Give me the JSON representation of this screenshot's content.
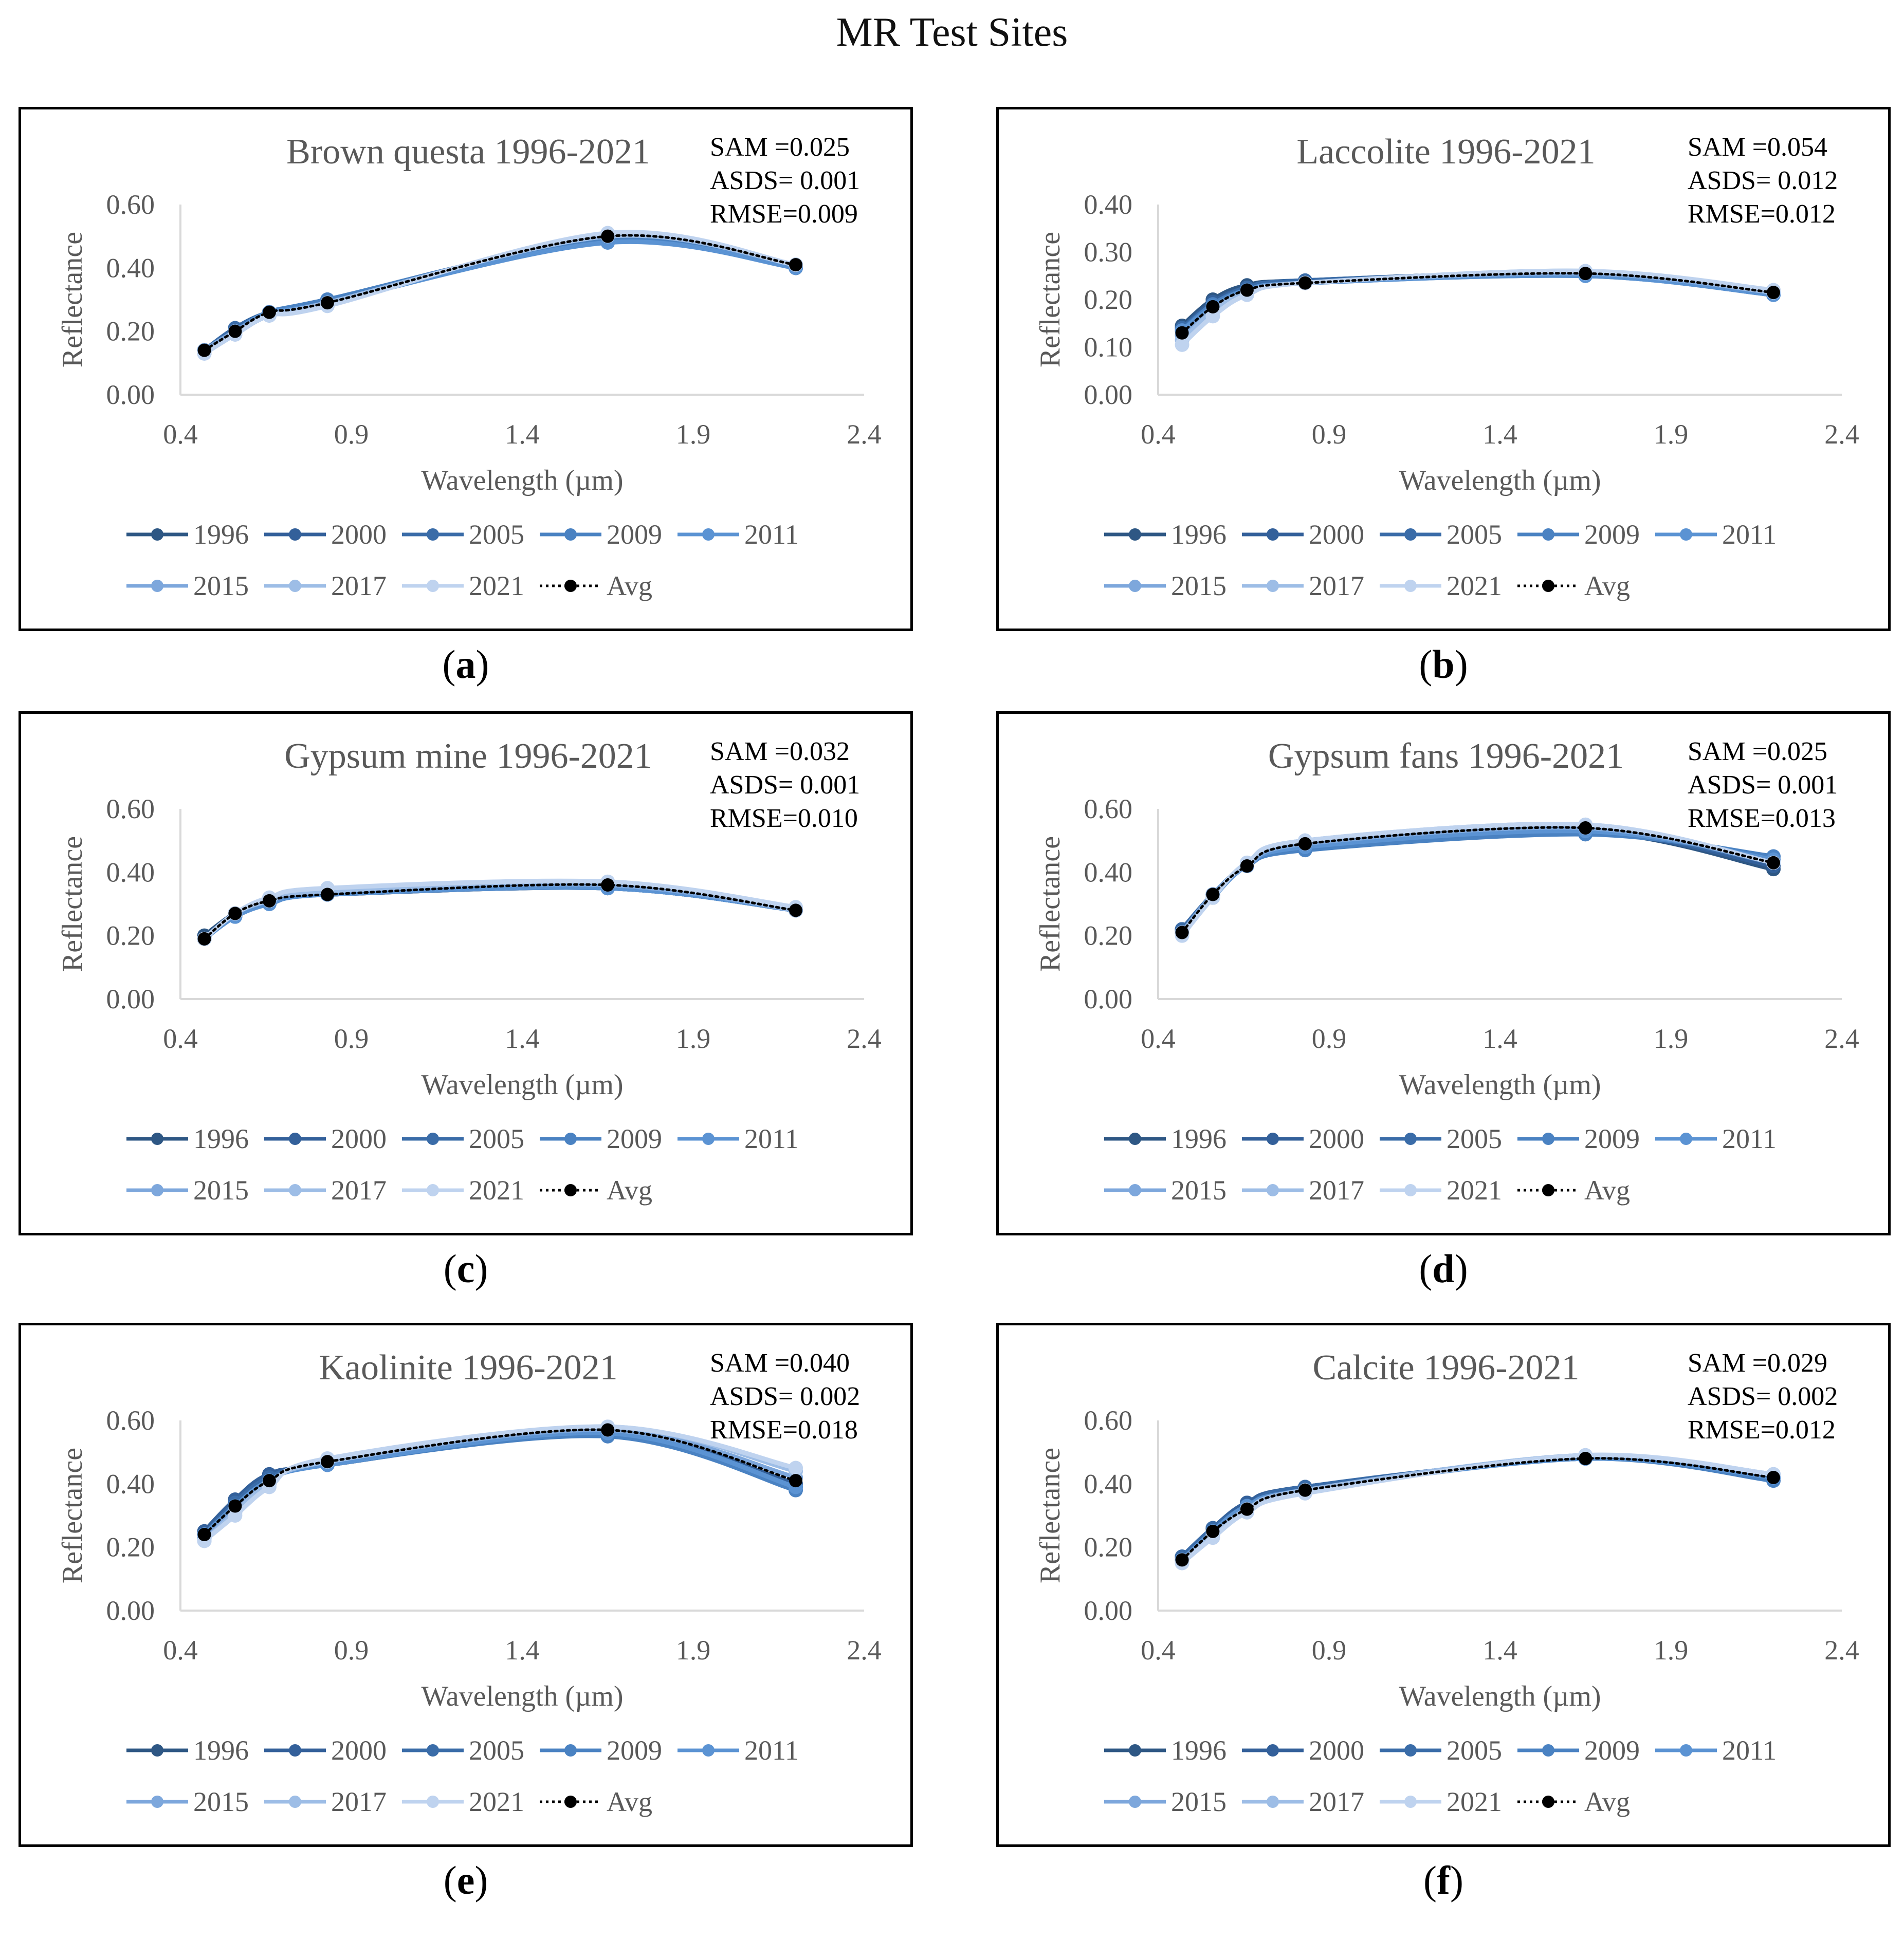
{
  "title": "MR Test Sites",
  "colors": {
    "1996": "#2e5784",
    "2000": "#33609a",
    "2005": "#3a6ca8",
    "2009": "#4a82c2",
    "2011": "#5b93d3",
    "2015": "#7da7dc",
    "2017": "#9dbde6",
    "2021": "#bfd3ef",
    "Avg": "#000000"
  },
  "chart_data": [
    {
      "type": "line",
      "id": "a",
      "caption": "a",
      "title": "Brown questa 1996-2021",
      "stats": [
        "SAM =0.025",
        "ASDS= 0.001",
        "RMSE=0.009"
      ],
      "xlabel": "Wavelength (µm)",
      "ylabel": "Reflectance",
      "xlim": [
        0.4,
        2.4
      ],
      "ylim": [
        0,
        0.6
      ],
      "xticks": [
        "0.4",
        "0.9",
        "1.4",
        "1.9",
        "2.4"
      ],
      "yticks": [
        "0.00",
        "0.20",
        "0.40",
        "0.60"
      ],
      "x": [
        0.47,
        0.56,
        0.66,
        0.83,
        1.65,
        2.2
      ],
      "series": [
        {
          "name": "1996",
          "values": [
            0.14,
            0.2,
            0.26,
            0.29,
            0.49,
            0.4
          ]
        },
        {
          "name": "2000",
          "values": [
            0.14,
            0.2,
            0.26,
            0.29,
            0.49,
            0.4
          ]
        },
        {
          "name": "2005",
          "values": [
            0.14,
            0.21,
            0.26,
            0.3,
            0.49,
            0.4
          ]
        },
        {
          "name": "2009",
          "values": [
            0.14,
            0.2,
            0.26,
            0.3,
            0.49,
            0.41
          ]
        },
        {
          "name": "2011",
          "values": [
            0.14,
            0.2,
            0.26,
            0.29,
            0.48,
            0.4
          ]
        },
        {
          "name": "2015",
          "values": [
            0.14,
            0.2,
            0.25,
            0.29,
            0.5,
            0.41
          ]
        },
        {
          "name": "2017",
          "values": [
            0.13,
            0.19,
            0.25,
            0.29,
            0.5,
            0.41
          ]
        },
        {
          "name": "2021",
          "values": [
            0.13,
            0.19,
            0.25,
            0.28,
            0.51,
            0.41
          ]
        },
        {
          "name": "Avg",
          "values": [
            0.14,
            0.2,
            0.26,
            0.29,
            0.5,
            0.41
          ]
        }
      ]
    },
    {
      "type": "line",
      "id": "b",
      "caption": "b",
      "title": "Laccolite 1996-2021",
      "stats": [
        "SAM =0.054",
        "ASDS= 0.012",
        "RMSE=0.012"
      ],
      "xlabel": "Wavelength (µm)",
      "ylabel": "Reflectance",
      "xlim": [
        0.4,
        2.4
      ],
      "ylim": [
        0,
        0.4
      ],
      "xticks": [
        "0.4",
        "0.9",
        "1.4",
        "1.9",
        "2.4"
      ],
      "yticks": [
        "0.00",
        "0.10",
        "0.20",
        "0.30",
        "0.40"
      ],
      "x": [
        0.47,
        0.56,
        0.66,
        0.83,
        1.65,
        2.2
      ],
      "series": [
        {
          "name": "1996",
          "values": [
            0.145,
            0.2,
            0.23,
            0.24,
            0.255,
            0.215
          ]
        },
        {
          "name": "2000",
          "values": [
            0.14,
            0.195,
            0.225,
            0.24,
            0.255,
            0.215
          ]
        },
        {
          "name": "2005",
          "values": [
            0.14,
            0.19,
            0.225,
            0.24,
            0.255,
            0.215
          ]
        },
        {
          "name": "2009",
          "values": [
            0.135,
            0.19,
            0.22,
            0.235,
            0.25,
            0.21
          ]
        },
        {
          "name": "2011",
          "values": [
            0.135,
            0.185,
            0.22,
            0.235,
            0.25,
            0.21
          ]
        },
        {
          "name": "2015",
          "values": [
            0.125,
            0.18,
            0.215,
            0.235,
            0.255,
            0.215
          ]
        },
        {
          "name": "2017",
          "values": [
            0.115,
            0.175,
            0.215,
            0.235,
            0.26,
            0.215
          ]
        },
        {
          "name": "2021",
          "values": [
            0.105,
            0.165,
            0.21,
            0.235,
            0.26,
            0.22
          ]
        },
        {
          "name": "Avg",
          "values": [
            0.13,
            0.185,
            0.22,
            0.235,
            0.255,
            0.215
          ]
        }
      ]
    },
    {
      "type": "line",
      "id": "c",
      "caption": "c",
      "title": "Gypsum mine 1996-2021",
      "stats": [
        "SAM =0.032",
        "ASDS= 0.001",
        "RMSE=0.010"
      ],
      "xlabel": "Wavelength (µm)",
      "ylabel": "Reflectance",
      "xlim": [
        0.4,
        2.4
      ],
      "ylim": [
        0,
        0.6
      ],
      "xticks": [
        "0.4",
        "0.9",
        "1.4",
        "1.9",
        "2.4"
      ],
      "yticks": [
        "0.00",
        "0.20",
        "0.40",
        "0.60"
      ],
      "x": [
        0.47,
        0.56,
        0.66,
        0.83,
        1.65,
        2.2
      ],
      "series": [
        {
          "name": "1996",
          "values": [
            0.2,
            0.27,
            0.31,
            0.33,
            0.35,
            0.28
          ]
        },
        {
          "name": "2000",
          "values": [
            0.19,
            0.27,
            0.31,
            0.33,
            0.35,
            0.28
          ]
        },
        {
          "name": "2005",
          "values": [
            0.19,
            0.27,
            0.31,
            0.33,
            0.35,
            0.28
          ]
        },
        {
          "name": "2009",
          "values": [
            0.19,
            0.26,
            0.3,
            0.33,
            0.35,
            0.28
          ]
        },
        {
          "name": "2011",
          "values": [
            0.19,
            0.26,
            0.3,
            0.33,
            0.35,
            0.28
          ]
        },
        {
          "name": "2015",
          "values": [
            0.19,
            0.27,
            0.31,
            0.34,
            0.36,
            0.28
          ]
        },
        {
          "name": "2017",
          "values": [
            0.19,
            0.27,
            0.31,
            0.34,
            0.37,
            0.28
          ]
        },
        {
          "name": "2021",
          "values": [
            0.19,
            0.27,
            0.32,
            0.35,
            0.37,
            0.29
          ]
        },
        {
          "name": "Avg",
          "values": [
            0.19,
            0.27,
            0.31,
            0.33,
            0.36,
            0.28
          ]
        }
      ]
    },
    {
      "type": "line",
      "id": "d",
      "caption": "d",
      "title": "Gypsum fans 1996-2021",
      "stats": [
        "SAM =0.025",
        "ASDS= 0.001",
        "RMSE=0.013"
      ],
      "xlabel": "Wavelength (µm)",
      "ylabel": "Reflectance",
      "xlim": [
        0.4,
        2.4
      ],
      "ylim": [
        0,
        0.6
      ],
      "xticks": [
        "0.4",
        "0.9",
        "1.4",
        "1.9",
        "2.4"
      ],
      "yticks": [
        "0.00",
        "0.20",
        "0.40",
        "0.60"
      ],
      "x": [
        0.47,
        0.56,
        0.66,
        0.83,
        1.65,
        2.2
      ],
      "series": [
        {
          "name": "1996",
          "values": [
            0.22,
            0.33,
            0.42,
            0.48,
            0.53,
            0.41
          ]
        },
        {
          "name": "2000",
          "values": [
            0.22,
            0.33,
            0.42,
            0.48,
            0.53,
            0.42
          ]
        },
        {
          "name": "2005",
          "values": [
            0.22,
            0.33,
            0.42,
            0.48,
            0.53,
            0.43
          ]
        },
        {
          "name": "2009",
          "values": [
            0.21,
            0.33,
            0.42,
            0.47,
            0.52,
            0.45
          ]
        },
        {
          "name": "2011",
          "values": [
            0.21,
            0.32,
            0.42,
            0.48,
            0.53,
            0.44
          ]
        },
        {
          "name": "2015",
          "values": [
            0.21,
            0.33,
            0.42,
            0.49,
            0.54,
            0.43
          ]
        },
        {
          "name": "2017",
          "values": [
            0.21,
            0.32,
            0.43,
            0.5,
            0.55,
            0.43
          ]
        },
        {
          "name": "2021",
          "values": [
            0.2,
            0.32,
            0.43,
            0.5,
            0.55,
            0.43
          ]
        },
        {
          "name": "Avg",
          "values": [
            0.21,
            0.33,
            0.42,
            0.49,
            0.54,
            0.43
          ]
        }
      ]
    },
    {
      "type": "line",
      "id": "e",
      "caption": "e",
      "title": "Kaolinite 1996-2021",
      "stats": [
        "SAM =0.040",
        "ASDS= 0.002",
        "RMSE=0.018"
      ],
      "xlabel": "Wavelength (µm)",
      "ylabel": "Reflectance",
      "xlim": [
        0.4,
        2.4
      ],
      "ylim": [
        0,
        0.6
      ],
      "xticks": [
        "0.4",
        "0.9",
        "1.4",
        "1.9",
        "2.4"
      ],
      "yticks": [
        "0.00",
        "0.20",
        "0.40",
        "0.60"
      ],
      "x": [
        0.47,
        0.56,
        0.66,
        0.83,
        1.65,
        2.2
      ],
      "series": [
        {
          "name": "1996",
          "values": [
            0.25,
            0.35,
            0.43,
            0.46,
            0.56,
            0.39
          ]
        },
        {
          "name": "2000",
          "values": [
            0.25,
            0.35,
            0.43,
            0.46,
            0.56,
            0.4
          ]
        },
        {
          "name": "2005",
          "values": [
            0.24,
            0.34,
            0.42,
            0.46,
            0.56,
            0.39
          ]
        },
        {
          "name": "2009",
          "values": [
            0.24,
            0.33,
            0.41,
            0.46,
            0.55,
            0.38
          ]
        },
        {
          "name": "2011",
          "values": [
            0.24,
            0.33,
            0.41,
            0.46,
            0.56,
            0.39
          ]
        },
        {
          "name": "2015",
          "values": [
            0.23,
            0.32,
            0.4,
            0.47,
            0.57,
            0.42
          ]
        },
        {
          "name": "2017",
          "values": [
            0.22,
            0.31,
            0.4,
            0.47,
            0.58,
            0.44
          ]
        },
        {
          "name": "2021",
          "values": [
            0.22,
            0.3,
            0.39,
            0.48,
            0.58,
            0.45
          ]
        },
        {
          "name": "Avg",
          "values": [
            0.24,
            0.33,
            0.41,
            0.47,
            0.57,
            0.41
          ]
        }
      ]
    },
    {
      "type": "line",
      "id": "f",
      "caption": "f",
      "title": "Calcite 1996-2021",
      "stats": [
        "SAM =0.029",
        "ASDS= 0.002",
        "RMSE=0.012"
      ],
      "xlabel": "Wavelength (µm)",
      "ylabel": "Reflectance",
      "xlim": [
        0.4,
        2.4
      ],
      "ylim": [
        0,
        0.6
      ],
      "xticks": [
        "0.4",
        "0.9",
        "1.4",
        "1.9",
        "2.4"
      ],
      "yticks": [
        "0.00",
        "0.20",
        "0.40",
        "0.60"
      ],
      "x": [
        0.47,
        0.56,
        0.66,
        0.83,
        1.65,
        2.2
      ],
      "series": [
        {
          "name": "1996",
          "values": [
            0.17,
            0.26,
            0.34,
            0.39,
            0.48,
            0.42
          ]
        },
        {
          "name": "2000",
          "values": [
            0.17,
            0.26,
            0.34,
            0.39,
            0.48,
            0.42
          ]
        },
        {
          "name": "2005",
          "values": [
            0.17,
            0.26,
            0.33,
            0.39,
            0.48,
            0.42
          ]
        },
        {
          "name": "2009",
          "values": [
            0.16,
            0.25,
            0.33,
            0.38,
            0.48,
            0.41
          ]
        },
        {
          "name": "2011",
          "values": [
            0.16,
            0.25,
            0.33,
            0.38,
            0.48,
            0.42
          ]
        },
        {
          "name": "2015",
          "values": [
            0.16,
            0.24,
            0.32,
            0.38,
            0.49,
            0.43
          ]
        },
        {
          "name": "2017",
          "values": [
            0.15,
            0.24,
            0.32,
            0.38,
            0.49,
            0.43
          ]
        },
        {
          "name": "2021",
          "values": [
            0.15,
            0.23,
            0.31,
            0.37,
            0.49,
            0.43
          ]
        },
        {
          "name": "Avg",
          "values": [
            0.16,
            0.25,
            0.32,
            0.38,
            0.48,
            0.42
          ]
        }
      ]
    }
  ]
}
